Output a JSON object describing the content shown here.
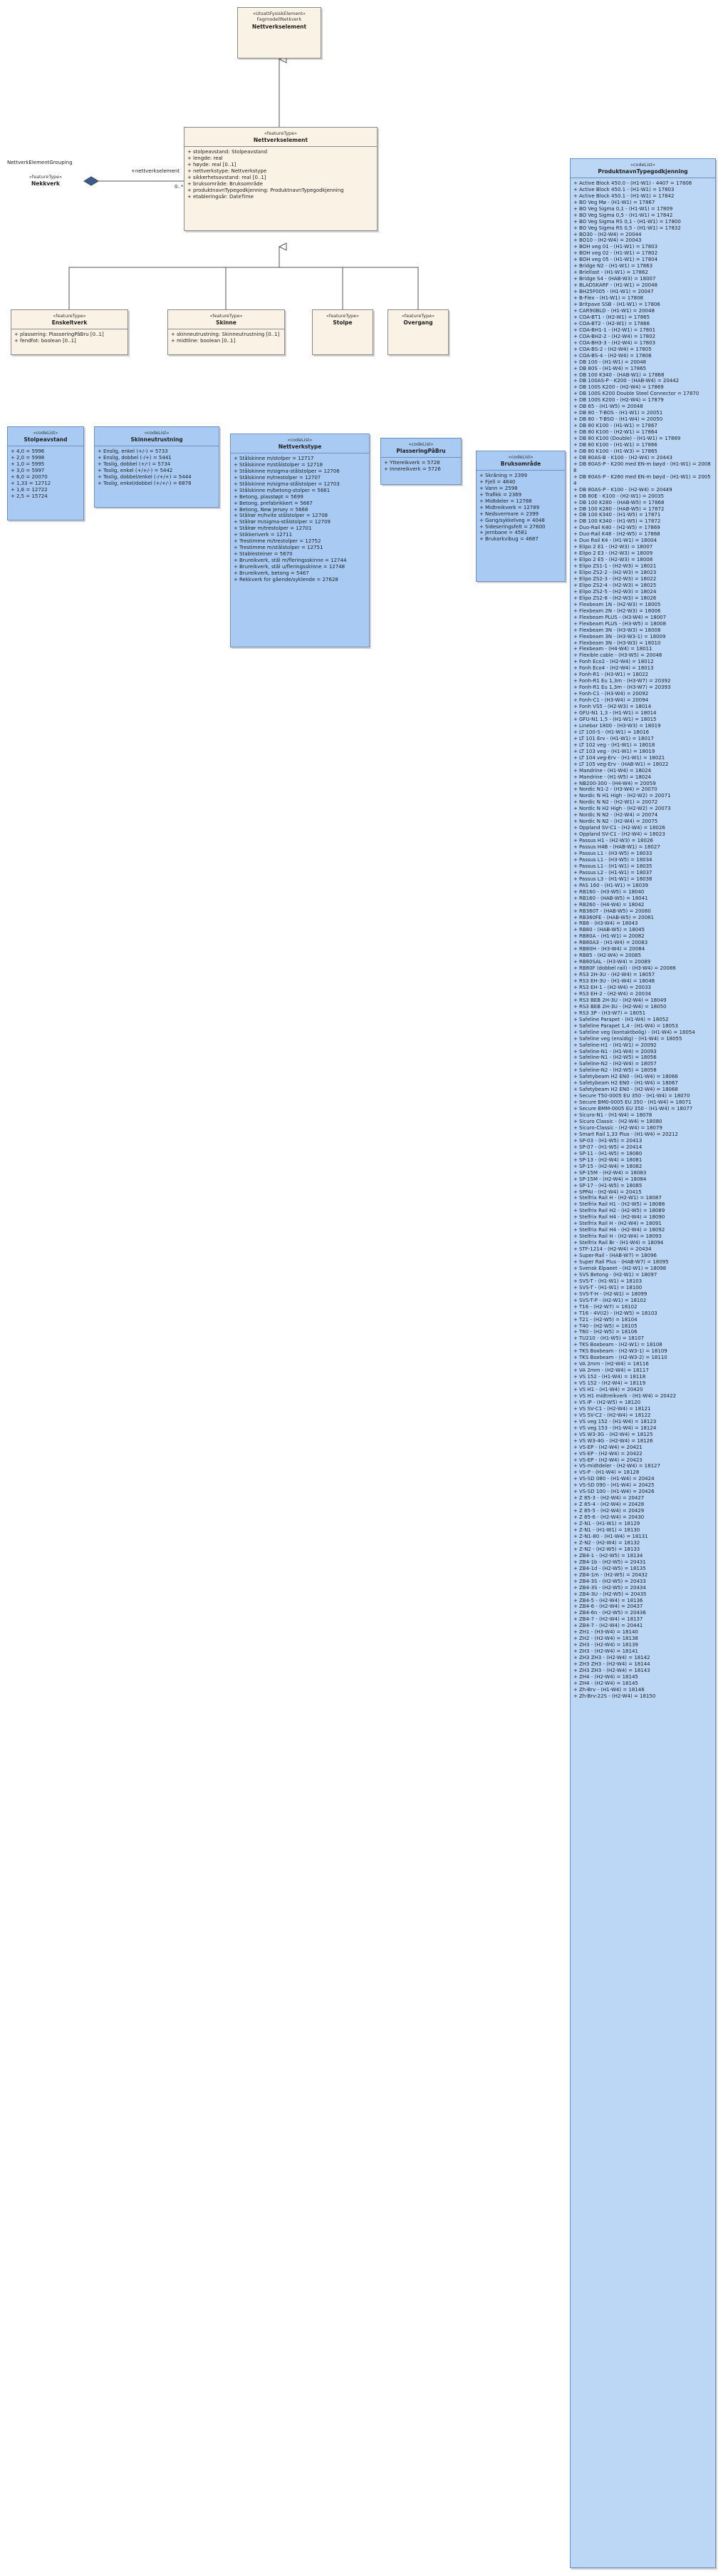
{
  "top_class": {
    "stereotype": "«UtsattFysiskElement»",
    "name": "FagmodellNetkverk",
    "name2": "Nettverkselement"
  },
  "main_class": {
    "stereotype": "«featureType»",
    "name": "Nettverkselement",
    "attributes": [
      "stolpeavstand: Stolpeavstand",
      "lengde: real",
      "høyde: real [0..1]",
      "nettverkstype: Nettverkstype",
      "sikkerhetsavstand: real [0..1]",
      "bruksområde: Bruksområde",
      "produktnavnTypegodkjenning: ProduktnavnTypegodkjenning",
      "etableringsår: DateTime"
    ]
  },
  "external": {
    "label": "NettverkElementGrouping",
    "stereotype": "«featureType»",
    "name": "Nekkverk"
  },
  "association": {
    "role": "+nettverkselement",
    "multiplicity": "0..*"
  },
  "subclasses": [
    {
      "stereotype": "«featureType»",
      "name": "Enskeltverk",
      "attributes": [
        "plassering: PlasseringPåBru [0..1]",
        "fendfot: boolean [0..1]"
      ]
    },
    {
      "stereotype": "«featureType»",
      "name": "Skinne",
      "attributes": [
        "skinneutrustning: Skinneutrustning [0..1]",
        "midtline: boolean [0..1]"
      ]
    },
    {
      "stereotype": "«featureType»",
      "name": "Stolpe",
      "attributes": []
    },
    {
      "stereotype": "«featureType»",
      "name": "Overgang",
      "attributes": []
    }
  ],
  "enumerations": [
    {
      "stereotype": "«codeList»",
      "name": "Stolpeavstand",
      "values": [
        "4,0 = 5996",
        "2,0 = 5998",
        "1,0 = 5995",
        "3,0 = 5997",
        "6,0 = 20070",
        "1,33 = 12712",
        "1,6 = 12722",
        "2,5 = 15724"
      ]
    },
    {
      "stereotype": "«codeList»",
      "name": "Skinneutrustning",
      "values": [
        "Enslig, enkel (+/-) = 5733",
        "Enslig, dobbel (-/+) = 5441",
        "Toslig, dobbel (+/-) = 5734",
        "Toslig, enkel (+/+/-) = 5442",
        "Toslig, dobbel/enkel (-/+/+) = 5444",
        "Toslig, enkel/dobbel (+/+/-) = 6878"
      ]
    },
    {
      "stereotype": "«codeList»",
      "name": "Nettverkstype",
      "values": [
        "Stålskinne m/stolper = 12717",
        "Stålskinne m/stålstolper = 12718",
        "Stålskinne m/sigma-stålstolper = 12706",
        "Stålskinne m/trestolper = 12707",
        "Stålskinne m/sigma-stålstolper = 12703",
        "Stålskinne m/betong-stolper = 5661",
        "Betong, plasstøpt = 5699",
        "Betong, prefabrikkert = 5667",
        "Betong, New Jersey = 5668",
        "Stålrør m/hvite stålstolper = 12708",
        "Stålrør m/sigma-stålstolper = 12709",
        "Stålrør m/trestolper = 12701",
        "Stikkeriverk = 12711",
        "Trestimme m/trestolper = 12752",
        "Trestimme m/stålstolper = 12751",
        "Stablesteiner = 5670",
        "Brureikverk, stål m/fleringsskinne = 12744",
        "Brureikverk, stål u/fleringsskinne = 12748",
        "Brureikverk, betong = 5467",
        "Rekkverk for gående/syklende = 27628"
      ]
    },
    {
      "stereotype": "«codeList»",
      "name": "PlasseringPåBru",
      "values": [
        "Yttereikverk = 5728",
        "Innereikverk = 5726"
      ]
    },
    {
      "stereotype": "«codeList»",
      "name": "Bruksområde",
      "values": [
        "Skråning = 2399",
        "Fjell = 4840",
        "Vann = 2598",
        "Trafikk = 2369",
        "Midtdeler = 12788",
        "Midtreikverk = 12789",
        "Nedsvermare = 2399",
        "Gang/sykkelveg = 4048",
        "Sideseringsfelt = 27600",
        "Jernbane = 4581",
        "Brukarkvibug = 4687"
      ]
    }
  ],
  "product_list": {
    "stereotype": "«codeList»",
    "name": "ProduktnavnTypegodkjenning",
    "values": [
      "Active Block 450.0 - (H1-W1) - 4407 = 17808",
      "Active Block 450.1 - (H1-W1) = 17803",
      "Active Block 450.1 - (H1-W1) = 17842",
      "BO Veg Mø - (H1-W1) = 17867",
      "BO Veg Sigma 0,1 - (H1-W1) = 17809",
      "BO Veg Sigma 0,5 - (H1-W1) = 17842",
      "BO Veg Sigma RS 0,1 - (H1-W1) = 17800",
      "BO Veg Sigma RS 0,5 - (H1-W1) = 17832",
      "BO30 - (H2-W4) = 20044",
      "BO10 - (H2-W4) = 20043",
      "BOH veg 01 - (H1-W1) = 17803",
      "BOH veg 02 - (H1-W1) = 17802",
      "BOH veg 05 - (H1-W1) = 17804",
      "Bridge N2 - (H1-W1) = 17863",
      "Briellast - (H1-W1) = 17862",
      "Bridge S4 - (HAB-W3) = 18007",
      "BLADSKARF - (H1-W1) = 20048",
      "BH25F005 - (H1-W1) = 20047",
      "B-Flex - (H1-W1) = 17808",
      "Britpave SSB - (H1-W1) = 17806",
      "CAR90BLD - (H1-W1) = 20048",
      "COA-BT1 - (H2-W1) = 17865",
      "COA-BT2 - (H2-W1) = 17866",
      "COA-BH1-1 - (H2-W1) = 17801",
      "COA-BH2-2 - (H2-W4) = 17802",
      "COA-BH3-3 - (H2-W4) = 17803",
      "COA-BS-2 - (H2-W4) = 17805",
      "COA-BS-4 - (H2-W4) = 17806",
      "DB 100 - (H1-W1) = 20048",
      "DB 80S - (H1-W4) = 17865",
      "DB 100 K340 - (HAB-W1) = 17868",
      "DB 100AS-P - K200 - (HAB-W4) = 20442",
      "DB 100S K200 - (H2-W4) = 17869",
      "DB 100S K200 Double Steel Connector = 17870",
      "DB 100S K200 - (H2-W4) = 17879",
      "DB 65 - (H1-W5) = 20048",
      "DB 80 - T-BOS - (H1-W1) = 20051",
      "DB 80 - T-BSO - (H1-W4) = 20050",
      "DB 80 K100 - (H1-W1) = 17867",
      "DB 80 K100 - (H2-W1) = 17864",
      "DB 80 K100 (Double) - (H1-W1) = 17869",
      "DB 80 K100 - (H1-W1) = 17866",
      "DB 80 K100 - (H1-W3) = 17865",
      "DB 80AS-B - K100 - (H2-W4) = 20443",
      "DB 80AS-P - K200 med EN-m bøyd - (H1-W1) = 20088",
      "DB 80AS-P - K260 med EN-m bøyd - (H1-W1) = 20054",
      "DB 80AS-P - K100 - (H2-W4) = 20449",
      "DB 80E - K100 - (H2-W1) = 20035",
      "DB 100 K280 - (HAB-W5) = 17868",
      "DB 100 K280 - (HAB-W5) = 17872",
      "DB 100 K340 - (H1-W5) = 17871",
      "DB 100 K340 - (H1-W5) = 17872",
      "Duo-Rail K40 - (H2-W5) = 17869",
      "Duo-Rail K48 - (H2-W5) = 17868",
      "Duo Rail K4 - (H1-W1) = 18004",
      "Elipo 2 E1 - (H2-W3) = 18007",
      "Elipo 2 E3 - (H2-W3) = 18009",
      "Elipo 2 E5 - (H2-W3) = 18008",
      "Elipo ZS1-1 - (H2-W3) = 18021",
      "Elipo ZS2-2 - (H2-W3) = 18023",
      "Elipo ZS2-3 - (H2-W3) = 18022",
      "Elipo ZS2-4 - (H2-W3) = 18025",
      "Elipo ZS2-5 - (H2-W3) = 18024",
      "Elipo ZS2-8 - (H2-W3) = 18026",
      "Flexbeam 1N - (H2-W3) = 18005",
      "Flexbeam 2N - (H2-W3) = 18006",
      "Flexbeam PLUS - (H3-W4) = 18007",
      "Flexbeam PLUS - (H3-W5) = 18008",
      "Flexbeam 3N - (H3-W3) = 18008",
      "Flexbeam 3N - (H3-W3-1) = 18009",
      "Flexbeam 3N - (H3-W3) = 18010",
      "Flexbeam - (H4-W4) = 18011",
      "Flexible cable - (H3-W5) = 20048",
      "Fonh Eco2 - (H2-W4) = 18012",
      "Fonh Eco4 - (H2-W4) = 18013",
      "Fonh-R1 - (H3-W1) = 18022",
      "Fonh-R1 Eu 1,3m - (H3-W7) = 20392",
      "Fonh-R1 Eu 1,3m - (H3-W7) = 20393",
      "Fonh-C1 - (H3-W4) = 20092",
      "Fonh-C1 - (H3-W4) = 20094",
      "Fonh VS5 - (H2-W3) = 18014",
      "GFU-N1 1,3 - (H1-W1) = 18014",
      "GFU-N1 1,5 - (H1-W1) = 18015",
      "Linebar 1800 - (H3-W3) = 18019",
      "LT 100-S - (H1-W1) = 18016",
      "LT 101 Erv - (H1-W1) = 18017",
      "LT 102 veg - (H1-W1) = 18018",
      "LT 103 veg - (H1-W1) = 18019",
      "LT 104 veg-Erv - (H1-W1) = 18021",
      "LT 105 veg-Erv - (HAB-W1) = 18022",
      "Mandrine - (H1-W4) = 18024",
      "Mandrine - (H1-W5) = 18024",
      "NB200-300 - (H4-W4) = 20059",
      "Nordic N1-2 - (H3-W4) = 20070",
      "Nordic N H1 High - (H2-W2) = 20071",
      "Nordic N N2 - (H2-W1) = 20072",
      "Nordic N H2 High - (H2-W2) = 20073",
      "Nordic N N2 - (H2-W4) = 20074",
      "Nordic N N2 - (H2-W4) = 20075",
      "Oppland SV-C1 - (H2-W4) = 18026",
      "Oppland SV-C1 - (H2-W4) = 18023",
      "Passus H1 - (H2-W3) = 18026",
      "Passus H4B - (HAB-W1) = 18027",
      "Passus L1 - (H3-W5) = 18033",
      "Passus L1 - (H3-W5) = 18034",
      "Passus L1 - (H1-W1) = 18035",
      "Passus L2 - (H1-W1) = 18037",
      "Passus L3 - (H1-W1) = 18038",
      "PAS 160 - (H1-W1) = 18039",
      "RB160 - (H3-W5) = 18040",
      "RB160 - (HAB-W5) = 18041",
      "RB260 - (H4-W4) = 18042",
      "RB360T - (HAB-W5) = 20080",
      "RB360FE - (HAB-W5) = 20081",
      "RB8 - (H3-W4) = 18043",
      "RB80 - (HAB-W5) = 18045",
      "RB80A - (H1-W1) = 20082",
      "RB80A3 - (H1-W4) = 20083",
      "RB80H - (H3-W4) = 20084",
      "RB85 - (H2-W4) = 20085",
      "RB80SAL - (H3-W4) = 20089",
      "RB80F (dobbel rail) - (H3-W4) = 20086",
      "RS3 2H-3U - (H2-W4) = 18057",
      "RS3 EH-3U - (H1-W4) = 18048",
      "RS3 EH-1 - (H2-W4) = 20033",
      "RS3 EH-2 - (H2-W4) = 20034",
      "RS3 BEB 2H-3U - (H2-W4) = 18049",
      "RS3 BEB 2H-3U - (H2-W4) = 18050",
      "RS3 3P - (H3-W7) = 18051",
      "Safeline Parapet - (H1-W4) = 18052",
      "Safeline Parapet 1,4 - (H1-W4) = 18053",
      "Safeline veg (kontaktbolig) - (H1-W4) = 18054",
      "Safeline veg (ensidig) - (H1-W4) = 18055",
      "Safeline-H1 - (H1-W1) = 20092",
      "Safeline-N1 - (H1-W4) = 20093",
      "Safeline-N1 - (H2-W5) = 18056",
      "Safeline-N2 - (H2-W4) = 18057",
      "Safeline-N2 - (H2-W5) = 18058",
      "Safetybeam H2 EN0 - (H1-W4) = 18066",
      "Safetybeam H2 EN0 - (H1-W4) = 18067",
      "Safetybeam H2 EN0 - (H2-W4) = 18068",
      "Secure T50-0005 EU 350 - (H1-W4) = 18070",
      "Secure BM0-0005 EU 350 - (H1-W4) = 18071",
      "Secure BMM-0005 EU 350 - (H1-W4) = 18077",
      "Sicuro-N1 - (H1-W4) = 18078",
      "Sicuro Classic - (H2-W4) = 18080",
      "Sicuro-Classic - (H2-W4) = 18079",
      "Smart Rail 1,33 Plus - (H1-W4) = 20212",
      "SP-03 - (H1-W5) = 20413",
      "SP-07 - (H1-W5) = 20414",
      "SP-11 - (H1-W5) = 18080",
      "SP-13 - (H2-W4) = 18081",
      "SP-15 - (H2-W4) = 18082",
      "SP-15M - (H2-W4) = 18083",
      "SP-15M - (H2-W4) = 18084",
      "SP-17 - (H1-W5) = 18085",
      "SPPAI - (H2-W4) = 20415",
      "Stelfrix Rail H - (H2-W1) = 18087",
      "Stelfrix Rail H1 - (H2-W5) = 18088",
      "Stelfrix Rail H2 - (H2-W5) = 18089",
      "Stelfrix Rail H4 - (H2-W4) = 18090",
      "Stelfrix Rail H - (H2-W4) = 18091",
      "Stelfrix Rail H4 - (H2-W4) = 18092",
      "Stelfrix Rail H - (H2-W4) = 18093",
      "Stelfrix Rail Br - (H1-W4) = 18094",
      "STF-1214 - (H2-W4) = 20434",
      "Super-Rail - (HAB-W7) = 18096",
      "Super Rail Plus - (HAB-W7) = 18095",
      "Svensk Elpaeet - (H2-W1) = 18098",
      "SVS Betong - (H2-W1) = 18097",
      "SVS-T - (H1-W1) = 18103",
      "SVS-T - (H1-W1) = 18100",
      "SVS-T-H - (H2-W1) = 18099",
      "SVS-T-P - (H2-W1) = 18102",
      "T16 - (H2-W7) = 18102",
      "T16 - 4V(I2) - (H2-W5) = 18103",
      "T21 - (H2-W5) = 18104",
      "T40 - (H2-W5) = 18105",
      "T60 - (H2-W5) = 18106",
      "TU210 - (H1-W5) = 18107",
      "TKS Boxbeam - (H2-W1) = 18108",
      "TKS Boxbeam - (H2-W3-1) = 18109",
      "TKS Boxbeam - (H2-W3-2) = 18110",
      "VA 2mm - (H2-W4) = 18116",
      "VA 2mm - (H2-W4) = 18117",
      "VS 152 - (H1-W4) = 18118",
      "VS 152 - (H2-W4) = 18119",
      "VS H1 - (H1-W4) = 20420",
      "VS H1 midtreikverk - (H1-W4) = 20422",
      "VS IP - (H2-W5) = 18120",
      "VS SV-C1 - (H2-W4) = 18121",
      "VS SV-C2 - (H2-W4) = 18122",
      "VS veg 152 - (H1-W4) = 18123",
      "VS veg 153 - (H1-W4) = 18124",
      "VS W3-3G - (H2-W4) = 18125",
      "VS W3-4G - (H2-W4) = 18126",
      "VS-EP - (H2-W4) = 20421",
      "VS-EP - (H2-W4) = 20422",
      "VS-EP - (H2-W4) = 20423",
      "VS-midtdeler - (H2-W4) = 18127",
      "VS-P - (H1-W4) = 18128",
      "VS-SD 080 - (H1-W4) = 20424",
      "VS-SD 090 - (H1-W4) = 20425",
      "VS-SD 100 - (H1-W4) = 20426",
      "Z 85-3 - (H2-W4) = 20427",
      "Z 85-4 - (H2-W4) = 20428",
      "Z 85-5 - (H2-W4) = 20429",
      "Z 85-6 - (H2-W4) = 20430",
      "Z-N1 - (H1-W1) = 18129",
      "Z-N1 - (H1-W1) = 18130",
      "Z-N1-80 - (H1-W4) = 18131",
      "Z-N2 - (H2-W4) = 18132",
      "Z-N2 - (H2-W5) = 18133",
      "ZB4-1 - (H2-W5) = 18134",
      "ZB4-1b - (H2-W5) = 20431",
      "ZB4-1d - (H2-W5) = 18135",
      "ZB4-1m - (H2-W5) = 20432",
      "ZB4-3S - (H2-W5) = 20433",
      "ZB4-3S - (H2-W5) = 20434",
      "ZB4-3U - (H2-W5) = 20435",
      "ZB4-5 - (H2-W4) = 18136",
      "ZB4-6 - (H2-W4) = 20437",
      "ZB4-6n - (H2-W5) = 20436",
      "ZB4-7 - (H2-W4) = 18137",
      "ZB4-7 - (H2-W4) = 20441",
      "ZH1 - (H3-W4) = 18140",
      "ZH2 - (H2-W4) = 18138",
      "ZH3 - (H2-W4) = 18139",
      "ZH3 - (H2-W4) = 18141",
      "ZH3 ZH3 - (H2-W4) = 18142",
      "ZH3 ZH3 - (H2-W4) = 18144",
      "ZH3 ZH3 - (H2-W4) = 18143",
      "ZH4 - (H2-W4) = 18145",
      "ZH4 - (H2-W4) = 18145",
      "Zh-Brv - (H1-W4) = 18146",
      "Zh-Brv-22S - (H2-W4) = 18150"
    ]
  }
}
